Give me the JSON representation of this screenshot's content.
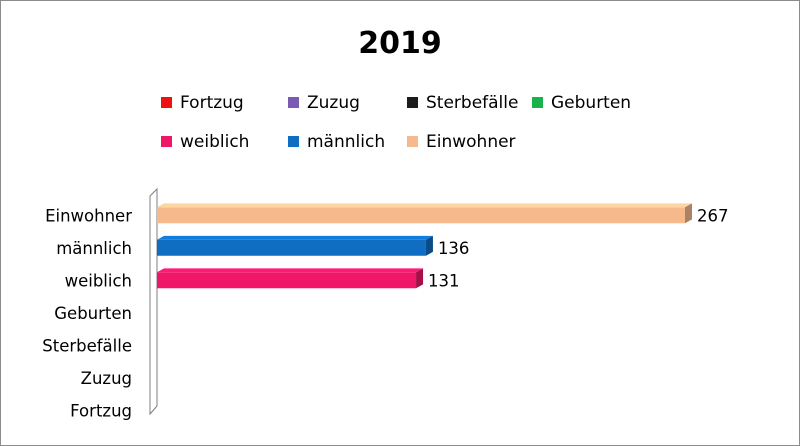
{
  "chart_data": {
    "type": "bar",
    "orientation": "horizontal",
    "title": "2019",
    "categories": [
      "Einwohner",
      "männlich",
      "weiblich",
      "Geburten",
      "Sterbefälle",
      "Zuzug",
      "Fortzug"
    ],
    "values": [
      267,
      136,
      131,
      null,
      null,
      null,
      null
    ],
    "value_labels": [
      "267",
      "136",
      "131",
      "",
      "",
      "",
      ""
    ],
    "colors": [
      "#f6b98c",
      "#0f6dc2",
      "#f01668",
      "#19b24b",
      "#1c1c1c",
      "#7a5ab5",
      "#ee1111"
    ],
    "legend": [
      "Fortzug",
      "Zuzug",
      "Sterbefälle",
      "Geburten",
      "weiblich",
      "männlich",
      "Einwohner"
    ],
    "legend_colors": [
      "#ee1111",
      "#7a5ab5",
      "#1c1c1c",
      "#19b24b",
      "#f01668",
      "#0f6dc2",
      "#f6b98c"
    ],
    "legend_position": "top",
    "xlim": [
      0,
      267
    ],
    "grid": false,
    "style": "3d"
  }
}
